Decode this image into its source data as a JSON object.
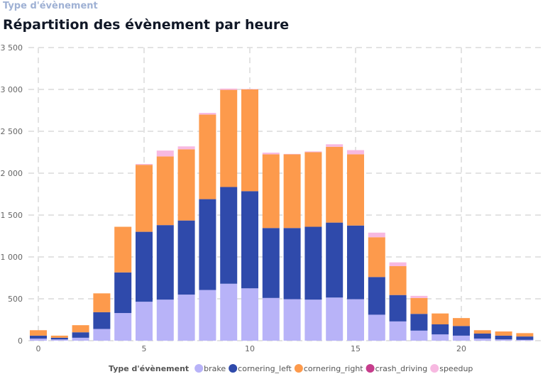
{
  "header": {
    "subtitle": "Type d'évènement",
    "title": "Répartition des évènement par heure"
  },
  "chart_data": {
    "type": "bar",
    "stacked": true,
    "title": "Répartition des évènement par heure",
    "xlabel": "",
    "ylabel": "",
    "ylim": [
      0,
      3500
    ],
    "yticks": [
      "0",
      "500",
      "1 000",
      "1 500",
      "2 000",
      "2 500",
      "3 000",
      "3 500"
    ],
    "xticks": [
      "0",
      "5",
      "10",
      "15",
      "20"
    ],
    "grid": true,
    "legend_title": "Type d'évènement",
    "legend_position": "bottom",
    "categories": [
      0,
      1,
      2,
      3,
      4,
      5,
      6,
      7,
      8,
      9,
      10,
      11,
      12,
      13,
      14,
      15,
      16,
      17,
      18,
      19,
      20,
      21,
      22,
      23
    ],
    "series": [
      {
        "name": "brake",
        "color": "#b8b3f8",
        "values": [
          25,
          15,
          35,
          140,
          330,
          465,
          490,
          550,
          605,
          680,
          625,
          510,
          495,
          490,
          515,
          495,
          310,
          230,
          120,
          75,
          60,
          25,
          15,
          10
        ]
      },
      {
        "name": "cornering_left",
        "color": "#2f4aab",
        "values": [
          35,
          20,
          65,
          200,
          485,
          835,
          890,
          885,
          1085,
          1155,
          1160,
          835,
          850,
          870,
          895,
          880,
          450,
          315,
          200,
          120,
          115,
          60,
          45,
          40
        ]
      },
      {
        "name": "cornering_right",
        "color": "#fd9a4c",
        "values": [
          65,
          25,
          85,
          225,
          545,
          800,
          820,
          850,
          1010,
          1160,
          1215,
          880,
          880,
          890,
          905,
          850,
          475,
          345,
          190,
          130,
          95,
          40,
          50,
          40
        ]
      },
      {
        "name": "crash_driving",
        "color": "#c63d8c",
        "values": [
          0,
          0,
          0,
          0,
          0,
          0,
          0,
          0,
          0,
          0,
          0,
          0,
          0,
          0,
          0,
          0,
          0,
          0,
          0,
          0,
          0,
          0,
          0,
          0
        ]
      },
      {
        "name": "speedup",
        "color": "#f7b9e1",
        "values": [
          0,
          0,
          0,
          0,
          0,
          10,
          70,
          35,
          20,
          15,
          5,
          20,
          5,
          10,
          30,
          50,
          55,
          45,
          25,
          0,
          0,
          0,
          0,
          0
        ]
      }
    ]
  }
}
